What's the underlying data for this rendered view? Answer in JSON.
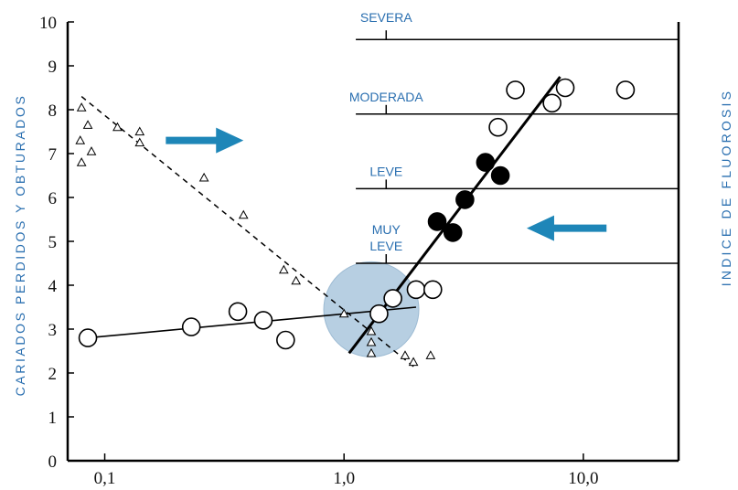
{
  "chart_data": {
    "type": "scatter",
    "x_scale": "log",
    "xlim": [
      0.07,
      25
    ],
    "ylim": [
      0,
      10
    ],
    "x_ticks": [
      {
        "value": 0.1,
        "label": "0,1"
      },
      {
        "value": 1.0,
        "label": "1,0"
      },
      {
        "value": 10.0,
        "label": "10,0"
      }
    ],
    "y_ticks": [
      {
        "value": 0,
        "label": "0"
      },
      {
        "value": 1,
        "label": "1"
      },
      {
        "value": 2,
        "label": "2"
      },
      {
        "value": 3,
        "label": "3"
      },
      {
        "value": 4,
        "label": "4"
      },
      {
        "value": 5,
        "label": "5"
      },
      {
        "value": 6,
        "label": "6"
      },
      {
        "value": 7,
        "label": "7"
      },
      {
        "value": 8,
        "label": "8"
      },
      {
        "value": 9,
        "label": "9"
      },
      {
        "value": 10,
        "label": "10"
      }
    ],
    "ylabel": "CARIADOS PERDIDOS Y OBTURADOS",
    "ylabel_right": "INDICE DE FLUOROSIS",
    "fluorosis_bands": [
      {
        "label": "SEVERA",
        "y_line": 9.6
      },
      {
        "label": "MODERADA",
        "y_line": 7.9
      },
      {
        "label": "LEVE",
        "y_line": 6.2
      },
      {
        "label": "MUY LEVE",
        "y_line": 4.5
      }
    ],
    "band_x_start": 1.12,
    "band_tick_x": 1.5,
    "series": [
      {
        "marker": "triangle",
        "points": [
          [
            0.08,
            8.05
          ],
          [
            0.085,
            7.65
          ],
          [
            0.079,
            7.3
          ],
          [
            0.088,
            7.05
          ],
          [
            0.08,
            6.8
          ],
          [
            0.113,
            7.6
          ],
          [
            0.14,
            7.5
          ],
          [
            0.14,
            7.25
          ],
          [
            0.26,
            6.45
          ],
          [
            0.38,
            5.6
          ],
          [
            0.56,
            4.35
          ],
          [
            0.63,
            4.1
          ],
          [
            1.0,
            3.35
          ],
          [
            1.3,
            2.95
          ],
          [
            1.3,
            2.7
          ],
          [
            1.3,
            2.45
          ],
          [
            1.8,
            2.4
          ],
          [
            1.95,
            2.25
          ],
          [
            2.3,
            2.4
          ]
        ]
      },
      {
        "marker": "open-circle",
        "points": [
          [
            0.085,
            2.8
          ],
          [
            0.23,
            3.05
          ],
          [
            0.36,
            3.4
          ],
          [
            0.46,
            3.2
          ],
          [
            0.57,
            2.75
          ],
          [
            1.4,
            3.35
          ],
          [
            1.6,
            3.7
          ],
          [
            2.0,
            3.9
          ],
          [
            2.35,
            3.9
          ],
          [
            4.4,
            7.6
          ],
          [
            5.2,
            8.45
          ],
          [
            7.4,
            8.15
          ],
          [
            8.4,
            8.5
          ],
          [
            15.0,
            8.45
          ]
        ]
      },
      {
        "marker": "filled-circle",
        "points": [
          [
            2.45,
            5.45
          ],
          [
            2.85,
            5.2
          ],
          [
            3.2,
            5.95
          ],
          [
            3.9,
            6.8
          ],
          [
            4.5,
            6.5
          ]
        ]
      }
    ],
    "lines": [
      {
        "style": "dashed",
        "from": [
          0.08,
          8.3
        ],
        "to": [
          2.0,
          2.1
        ]
      },
      {
        "style": "solid-thin",
        "from": [
          0.085,
          2.8
        ],
        "to": [
          2.0,
          3.5
        ]
      },
      {
        "style": "solid-thick",
        "from": [
          1.05,
          2.45
        ],
        "to": [
          8.0,
          8.75
        ]
      }
    ],
    "highlight_circle": {
      "x": 1.3,
      "y": 3.45,
      "color": "#b7cfe2"
    },
    "arrows": [
      {
        "direction": "right",
        "x_from": 0.18,
        "x_to": 0.38,
        "y": 7.3,
        "color": "#1e86b8"
      },
      {
        "direction": "left",
        "x_from": 12.5,
        "x_to": 5.8,
        "y": 5.3,
        "color": "#1e86b8"
      }
    ]
  }
}
